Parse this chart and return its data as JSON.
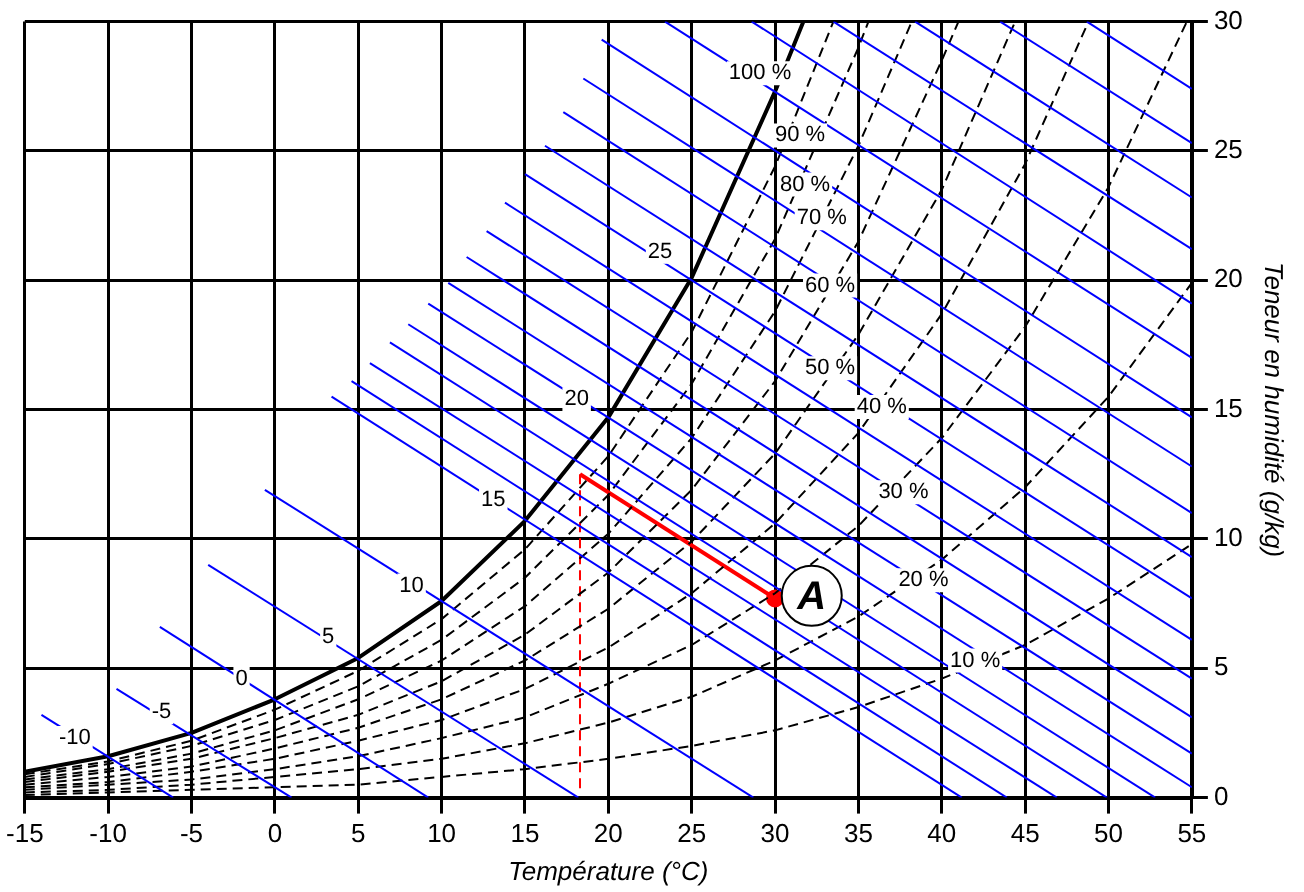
{
  "chart_data": {
    "type": "line",
    "xlabel": "Température (°C)",
    "ylabel": "Teneur en humidité (g/kg)",
    "xlim": [
      -15,
      55
    ],
    "xticks": [
      -15,
      -10,
      -5,
      0,
      5,
      10,
      15,
      20,
      25,
      30,
      35,
      40,
      45,
      50,
      55
    ],
    "ylim": [
      0,
      30
    ],
    "yticks": [
      0,
      5,
      10,
      15,
      20,
      25,
      30
    ],
    "grid": true,
    "legend": false,
    "marker": "none",
    "series": [
      {
        "type": "line",
        "color": "#0000ff",
        "x": [
          -14,
          -6.1
        ],
        "values": [
          3.2,
          0
        ]
      },
      {
        "type": "line",
        "color": "#0000ff",
        "x": [
          -9.5,
          1.0
        ],
        "values": [
          4.2,
          0
        ]
      },
      {
        "type": "line",
        "color": "#0000ff",
        "x": [
          -6.9,
          9.2
        ],
        "values": [
          6.6,
          0
        ]
      },
      {
        "type": "line",
        "color": "#0000ff",
        "x": [
          -4.0,
          18.2
        ],
        "values": [
          9.0,
          0
        ]
      },
      {
        "type": "line",
        "color": "#0000ff",
        "x": [
          -0.6,
          28.7
        ],
        "values": [
          11.9,
          0
        ]
      },
      {
        "type": "line",
        "color": "#0000ff",
        "x": [
          3.4,
          41.2
        ],
        "values": [
          15.5,
          0
        ]
      },
      {
        "type": "line",
        "color": "#0000ff",
        "x": [
          4.6,
          43.9
        ],
        "values": [
          16.1,
          0
        ]
      },
      {
        "type": "line",
        "color": "#0000ff",
        "x": [
          5.7,
          46.9
        ],
        "values": [
          16.8,
          0
        ]
      },
      {
        "type": "line",
        "color": "#0000ff",
        "x": [
          6.9,
          49.9
        ],
        "values": [
          17.6,
          0
        ]
      },
      {
        "type": "line",
        "color": "#0000ff",
        "x": [
          8.0,
          52.8
        ],
        "values": [
          18.3,
          0
        ]
      },
      {
        "type": "line",
        "color": "#0000ff",
        "x": [
          9.2,
          55
        ],
        "values": [
          19.1,
          0.4
        ]
      },
      {
        "type": "line",
        "color": "#0000ff",
        "x": [
          10.4,
          55
        ],
        "values": [
          19.9,
          1.7
        ]
      },
      {
        "type": "line",
        "color": "#0000ff",
        "x": [
          11.5,
          55
        ],
        "values": [
          20.9,
          3.1
        ]
      },
      {
        "type": "line",
        "color": "#0000ff",
        "x": [
          12.7,
          55
        ],
        "values": [
          21.9,
          4.6
        ]
      },
      {
        "type": "line",
        "color": "#0000ff",
        "x": [
          13.8,
          55
        ],
        "values": [
          23.0,
          6.1
        ]
      },
      {
        "type": "line",
        "color": "#0000ff",
        "x": [
          15.0,
          55
        ],
        "values": [
          24.1,
          7.7
        ]
      },
      {
        "type": "line",
        "color": "#0000ff",
        "x": [
          16.2,
          55
        ],
        "values": [
          25.2,
          9.3
        ]
      },
      {
        "type": "line",
        "color": "#0000ff",
        "x": [
          17.3,
          55
        ],
        "values": [
          26.5,
          11.0
        ]
      },
      {
        "type": "line",
        "color": "#0000ff",
        "x": [
          18.5,
          55
        ],
        "values": [
          27.8,
          12.8
        ]
      },
      {
        "type": "line",
        "color": "#0000ff",
        "x": [
          19.6,
          55
        ],
        "values": [
          29.3,
          14.7
        ]
      },
      {
        "type": "line",
        "color": "#0000ff",
        "x": [
          23.4,
          55
        ],
        "values": [
          30,
          17.0
        ]
      },
      {
        "type": "line",
        "color": "#0000ff",
        "x": [
          28.6,
          55
        ],
        "values": [
          30,
          19.1
        ]
      },
      {
        "type": "line",
        "color": "#0000ff",
        "x": [
          33.5,
          55
        ],
        "values": [
          30,
          21.2
        ]
      },
      {
        "type": "line",
        "color": "#0000ff",
        "x": [
          38.4,
          55
        ],
        "values": [
          30,
          23.2
        ]
      },
      {
        "type": "line",
        "color": "#0000ff",
        "x": [
          43.5,
          55
        ],
        "values": [
          30,
          25.3
        ]
      },
      {
        "type": "line",
        "color": "#0000ff",
        "x": [
          48.7,
          55
        ],
        "values": [
          30,
          27.4
        ]
      },
      {
        "type": "line",
        "color": "#000000",
        "line_style": "solid",
        "x": [
          -15,
          -10,
          -5,
          0,
          5,
          10,
          15,
          20,
          25,
          30,
          31.7
        ],
        "values": [
          1.0,
          1.6,
          2.5,
          3.8,
          5.4,
          7.6,
          10.7,
          14.7,
          20.1,
          27.3,
          30
        ]
      },
      {
        "type": "line",
        "color": "#000000",
        "line_style": "dashed",
        "x": [
          -15,
          -10,
          -5,
          0,
          5,
          10,
          15,
          20,
          25,
          30,
          33.5
        ],
        "values": [
          0.9,
          1.4,
          2.2,
          3.4,
          4.9,
          6.9,
          9.6,
          13.2,
          18.0,
          24.4,
          30
        ]
      },
      {
        "type": "line",
        "color": "#000000",
        "line_style": "dashed",
        "x": [
          -15,
          -10,
          -5,
          0,
          5,
          10,
          15,
          20,
          25,
          30,
          35,
          35.6
        ],
        "values": [
          0.8,
          1.3,
          2.0,
          3.0,
          4.3,
          6.1,
          8.5,
          11.7,
          16.0,
          21.6,
          29.0,
          30
        ]
      },
      {
        "type": "line",
        "color": "#000000",
        "line_style": "dashed",
        "x": [
          -15,
          -10,
          -5,
          0,
          5,
          10,
          15,
          20,
          25,
          30,
          35,
          38.2
        ],
        "values": [
          0.7,
          1.1,
          1.7,
          2.6,
          3.8,
          5.3,
          7.4,
          10.2,
          13.9,
          18.8,
          25.2,
          30
        ]
      },
      {
        "type": "line",
        "color": "#000000",
        "line_style": "dashed",
        "x": [
          -15,
          -10,
          -5,
          0,
          5,
          10,
          15,
          20,
          25,
          30,
          35,
          40,
          41
        ],
        "values": [
          0.6,
          1.0,
          1.5,
          2.3,
          3.2,
          4.5,
          6.3,
          8.7,
          11.9,
          16.1,
          21.5,
          28.5,
          30
        ]
      },
      {
        "type": "line",
        "color": "#000000",
        "line_style": "dashed",
        "x": [
          -15,
          -10,
          -5,
          0,
          5,
          10,
          15,
          20,
          25,
          30,
          35,
          40,
          44.4
        ],
        "values": [
          0.5,
          0.8,
          1.2,
          1.9,
          2.7,
          3.8,
          5.3,
          7.3,
          9.9,
          13.3,
          17.9,
          23.5,
          30
        ]
      },
      {
        "type": "line",
        "color": "#000000",
        "line_style": "dashed",
        "x": [
          -15,
          -10,
          -5,
          0,
          5,
          10,
          15,
          20,
          25,
          30,
          35,
          40,
          45,
          48.8
        ],
        "values": [
          0.4,
          0.6,
          1.0,
          1.5,
          2.2,
          3.0,
          4.2,
          5.8,
          7.9,
          10.6,
          14.1,
          18.7,
          24.5,
          30
        ]
      },
      {
        "type": "line",
        "color": "#000000",
        "line_style": "dashed",
        "x": [
          -15,
          -10,
          -5,
          0,
          5,
          10,
          15,
          20,
          25,
          30,
          35,
          40,
          45,
          50,
          54.7
        ],
        "values": [
          0.3,
          0.5,
          0.7,
          1.1,
          1.6,
          2.3,
          3.1,
          4.4,
          5.9,
          7.9,
          10.5,
          13.9,
          18.2,
          23.6,
          30
        ]
      },
      {
        "type": "line",
        "color": "#000000",
        "line_style": "dashed",
        "x": [
          -15,
          -10,
          -5,
          0,
          5,
          10,
          15,
          20,
          25,
          30,
          35,
          40,
          45,
          50,
          55
        ],
        "values": [
          0.2,
          0.3,
          0.5,
          0.8,
          1.1,
          1.5,
          2.1,
          2.9,
          3.9,
          5.3,
          7.0,
          9.2,
          12.0,
          15.5,
          19.9
        ]
      },
      {
        "type": "line",
        "color": "#000000",
        "line_style": "dashed",
        "x": [
          -15,
          -10,
          -5,
          0,
          5,
          10,
          15,
          20,
          25,
          30,
          35,
          40,
          45,
          50,
          55
        ],
        "values": [
          0.1,
          0.2,
          0.3,
          0.4,
          0.5,
          0.8,
          1.1,
          1.5,
          2.0,
          2.6,
          3.5,
          4.6,
          5.9,
          7.7,
          9.8
        ]
      },
      {
        "type": "line",
        "color": "#ff0000",
        "line_style": "solid",
        "x": [
          30,
          18.3
        ],
        "values": [
          7.7,
          12.5
        ]
      },
      {
        "type": "line",
        "color": "#ff0000",
        "line_style": "dashed",
        "x": [
          18.3,
          18.3
        ],
        "values": [
          12.5,
          0.3
        ]
      },
      {
        "type": "scatter",
        "color": "#ff0000",
        "marker": "circle",
        "x": [
          30
        ],
        "values": [
          7.7
        ]
      }
    ],
    "annotations": [
      {
        "text": "-10",
        "x": -12,
        "y": 2.3
      },
      {
        "text": "-5",
        "x": -6.8,
        "y": 3.3
      },
      {
        "text": "0",
        "x": -2.0,
        "y": 4.6
      },
      {
        "text": "5",
        "x": 3.2,
        "y": 6.2
      },
      {
        "text": "10",
        "x": 8.2,
        "y": 8.2
      },
      {
        "text": "15",
        "x": 13.1,
        "y": 11.5
      },
      {
        "text": "20",
        "x": 18.1,
        "y": 15.4
      },
      {
        "text": "25",
        "x": 23.1,
        "y": 21.1
      },
      {
        "text": "100 %",
        "x": 29.1,
        "y": 28.0
      },
      {
        "text": "90 %",
        "x": 31.5,
        "y": 25.6
      },
      {
        "text": "80 %",
        "x": 31.8,
        "y": 23.7
      },
      {
        "text": "70 %",
        "x": 32.8,
        "y": 22.4
      },
      {
        "text": "60 %",
        "x": 33.3,
        "y": 19.8
      },
      {
        "text": "50 %",
        "x": 33.3,
        "y": 16.6
      },
      {
        "text": "40 %",
        "x": 36.4,
        "y": 15.1
      },
      {
        "text": "30 %",
        "x": 37.7,
        "y": 11.8
      },
      {
        "text": "20 %",
        "x": 38.9,
        "y": 8.4
      },
      {
        "text": "10 %",
        "x": 42.0,
        "y": 5.3
      },
      {
        "text": "A",
        "x": 32.2,
        "y": 7.8
      }
    ]
  }
}
